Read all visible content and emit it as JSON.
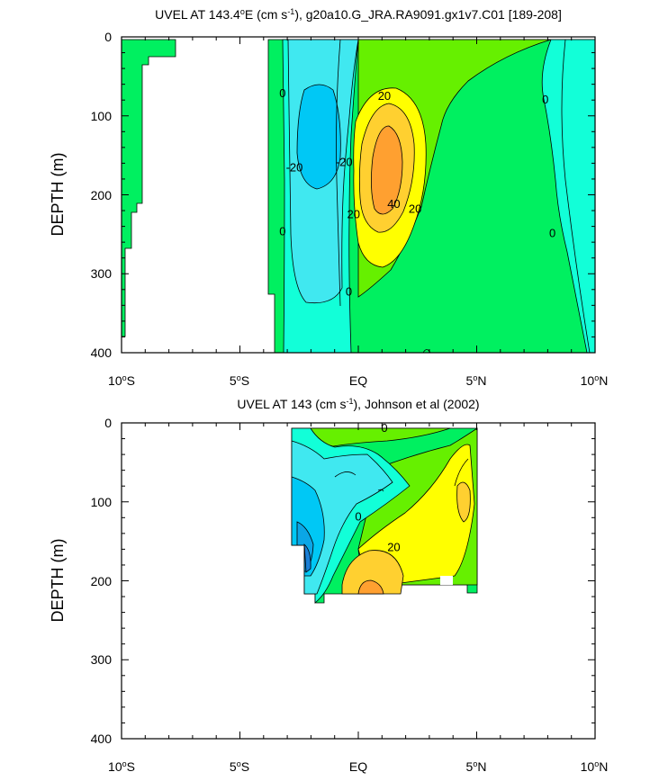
{
  "colors": {
    "neg_40": "#1a7fd6",
    "neg_30": "#0ba6e6",
    "neg_20": "#00c8f5",
    "neg_10": "#40e8f0",
    "neg_0": "#12ffd8",
    "pos_0": "#00f060",
    "pos_10": "#66f000",
    "pos_20": "#ffff00",
    "pos_30": "#ffd030",
    "pos_40": "#ffa030"
  },
  "chart_data": [
    {
      "type": "contour",
      "title": "UVEL AT 143.4°E (cm s⁻¹), g20a10.G_JRA.RA9091.gx1v7.C01 [189-208]",
      "title_parts": {
        "pre": "UVEL AT 143.4",
        "sup1": "o",
        "mid": "E (cm s",
        "sup2": "-1",
        "post": "), g20a10.G_JRA.RA9091.gx1v7.C01 [189-208]"
      },
      "ylabel": "DEPTH (m)",
      "xlim": [
        -10,
        10
      ],
      "ylim": [
        0,
        400
      ],
      "y_reversed": true,
      "x_ticks": [
        -10,
        -5,
        0,
        5,
        10
      ],
      "x_tick_labels": [
        {
          "value": -10,
          "num": "10",
          "sup": "o",
          "hemi": "S"
        },
        {
          "value": -5,
          "num": "5",
          "sup": "o",
          "hemi": "S"
        },
        {
          "value": 0,
          "num": "EQ",
          "sup": "",
          "hemi": ""
        },
        {
          "value": 5,
          "num": "5",
          "sup": "o",
          "hemi": "N"
        },
        {
          "value": 10,
          "num": "10",
          "sup": "o",
          "hemi": "N"
        }
      ],
      "y_ticks": [
        0,
        100,
        200,
        300,
        400
      ],
      "y_tick_labels": [
        "0",
        "100",
        "200",
        "300",
        "400"
      ],
      "contour_labels": [
        {
          "text": "20",
          "x": 1.1,
          "y": 75
        },
        {
          "text": "0",
          "x": -3.2,
          "y": 72
        },
        {
          "text": "0",
          "x": 7.9,
          "y": 80
        },
        {
          "text": "-20",
          "x": -2.7,
          "y": 166
        },
        {
          "text": "-20",
          "x": -0.6,
          "y": 159
        },
        {
          "text": "40",
          "x": 1.5,
          "y": 212
        },
        {
          "text": "20",
          "x": 2.4,
          "y": 218
        },
        {
          "text": "20",
          "x": -0.2,
          "y": 225
        },
        {
          "text": "0",
          "x": -3.2,
          "y": 247
        },
        {
          "text": "0",
          "x": 8.2,
          "y": 249
        },
        {
          "text": "0",
          "x": -0.4,
          "y": 323
        }
      ],
      "grid": false
    },
    {
      "type": "contour",
      "title": "UVEL AT 143 (cm s⁻¹), Johnson et al (2002)",
      "title_parts": {
        "pre": "UVEL AT 143 (cm s",
        "sup1": "-1",
        "mid": "",
        "sup2": "",
        "post": "), Johnson et al (2002)"
      },
      "ylabel": "DEPTH (m)",
      "xlim": [
        -10,
        10
      ],
      "ylim": [
        0,
        400
      ],
      "y_reversed": true,
      "x_ticks": [
        -10,
        -5,
        0,
        5,
        10
      ],
      "x_tick_labels": [
        {
          "value": -10,
          "num": "10",
          "sup": "o",
          "hemi": "S"
        },
        {
          "value": -5,
          "num": "5",
          "sup": "o",
          "hemi": "S"
        },
        {
          "value": 0,
          "num": "EQ",
          "sup": "",
          "hemi": ""
        },
        {
          "value": 5,
          "num": "5",
          "sup": "o",
          "hemi": "N"
        },
        {
          "value": 10,
          "num": "10",
          "sup": "o",
          "hemi": "N"
        }
      ],
      "y_ticks": [
        0,
        100,
        200,
        300,
        400
      ],
      "y_tick_labels": [
        "0",
        "100",
        "200",
        "300",
        "400"
      ],
      "contour_labels": [
        {
          "text": "0",
          "x": 1.1,
          "y": 7
        },
        {
          "text": "0",
          "x": 0.0,
          "y": 119
        },
        {
          "text": "20",
          "x": 1.5,
          "y": 158
        }
      ],
      "grid": false
    }
  ]
}
